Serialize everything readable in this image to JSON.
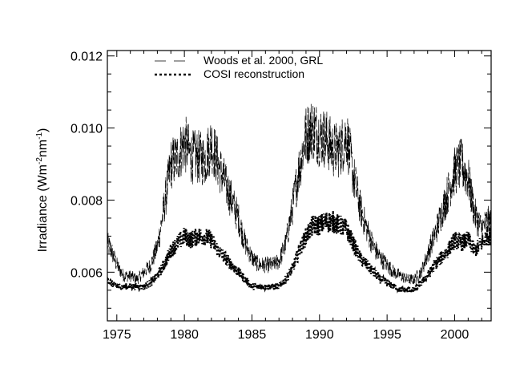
{
  "chart_data": {
    "type": "line",
    "title": "",
    "xlabel": "",
    "ylabel": "Irradiance (Wm-2nm-1)",
    "ylabel_parts": {
      "pre": "Irradiance (Wm",
      "sup1": "-2",
      "mid": "nm",
      "sup2": "-1",
      "post": ")"
    },
    "xlim": [
      1974.3,
      2002.7
    ],
    "ylim": [
      0.00465,
      0.01215
    ],
    "x_ticks": [
      1975,
      1980,
      1985,
      1990,
      1995,
      2000
    ],
    "x_tick_labels": [
      "1975",
      "1980",
      "1985",
      "1990",
      "1995",
      "2000"
    ],
    "y_ticks": [
      0.006,
      0.008,
      0.01,
      0.012
    ],
    "y_tick_labels": [
      "0.006",
      "0.008",
      "0.010",
      "0.012"
    ],
    "legend_position": "top-center",
    "series": [
      {
        "name": "Woods et al. 2000, GRL",
        "style": "thin-long-dash",
        "x": [
          1974.3,
          1974.6,
          1975.0,
          1975.5,
          1976.0,
          1976.5,
          1977.0,
          1977.5,
          1978.0,
          1978.5,
          1979.0,
          1979.5,
          1980.0,
          1980.5,
          1981.0,
          1981.5,
          1982.0,
          1982.5,
          1983.0,
          1983.5,
          1984.0,
          1984.5,
          1985.0,
          1985.5,
          1986.0,
          1986.5,
          1987.0,
          1987.5,
          1988.0,
          1988.5,
          1989.0,
          1989.5,
          1990.0,
          1990.5,
          1991.0,
          1991.5,
          1992.0,
          1992.5,
          1993.0,
          1993.5,
          1994.0,
          1994.5,
          1995.0,
          1995.5,
          1996.0,
          1996.5,
          1997.0,
          1997.5,
          1998.0,
          1998.5,
          1999.0,
          1999.5,
          2000.0,
          2000.5,
          2001.0,
          2001.5,
          2002.0,
          2002.4
        ],
        "values": [
          0.0068,
          0.0066,
          0.0062,
          0.0059,
          0.0059,
          0.0058,
          0.006,
          0.0062,
          0.0067,
          0.0078,
          0.009,
          0.0092,
          0.0096,
          0.0092,
          0.0092,
          0.0091,
          0.0096,
          0.009,
          0.0085,
          0.008,
          0.0075,
          0.0068,
          0.0064,
          0.0062,
          0.0062,
          0.0062,
          0.0063,
          0.0068,
          0.0078,
          0.0089,
          0.0098,
          0.01,
          0.0098,
          0.0097,
          0.0094,
          0.0094,
          0.0098,
          0.0087,
          0.0078,
          0.0072,
          0.0067,
          0.0064,
          0.0062,
          0.006,
          0.0059,
          0.0058,
          0.0058,
          0.006,
          0.0065,
          0.007,
          0.0076,
          0.0082,
          0.0088,
          0.009,
          0.0086,
          0.0076,
          0.0072,
          0.0074
        ]
      },
      {
        "name": "COSI reconstruction",
        "style": "thick-dotted",
        "x": [
          1974.3,
          1974.6,
          1975.0,
          1975.5,
          1976.0,
          1976.5,
          1977.0,
          1977.5,
          1978.0,
          1978.5,
          1979.0,
          1979.5,
          1980.0,
          1980.5,
          1981.0,
          1981.5,
          1982.0,
          1982.5,
          1983.0,
          1983.5,
          1984.0,
          1984.5,
          1985.0,
          1985.5,
          1986.0,
          1986.5,
          1987.0,
          1987.5,
          1988.0,
          1988.5,
          1989.0,
          1989.5,
          1990.0,
          1990.5,
          1991.0,
          1991.5,
          1992.0,
          1992.5,
          1993.0,
          1993.5,
          1994.0,
          1994.5,
          1995.0,
          1995.5,
          1996.0,
          1996.5,
          1997.0,
          1997.5,
          1998.0,
          1998.5,
          1999.0,
          1999.5,
          2000.0,
          2000.5,
          2001.0,
          2001.5,
          2002.0,
          2002.4
        ],
        "values": [
          0.0058,
          0.0057,
          0.0056,
          0.0056,
          0.0056,
          0.0056,
          0.0056,
          0.0057,
          0.0059,
          0.0062,
          0.0066,
          0.0068,
          0.007,
          0.0069,
          0.007,
          0.007,
          0.0069,
          0.0066,
          0.0064,
          0.0062,
          0.006,
          0.0058,
          0.0056,
          0.0056,
          0.0056,
          0.0056,
          0.0056,
          0.0058,
          0.0061,
          0.0066,
          0.007,
          0.0073,
          0.0073,
          0.0074,
          0.0074,
          0.0073,
          0.0072,
          0.0068,
          0.0064,
          0.0062,
          0.006,
          0.0058,
          0.0057,
          0.0056,
          0.0055,
          0.0055,
          0.0055,
          0.0057,
          0.0059,
          0.0062,
          0.0064,
          0.0066,
          0.0069,
          0.0068,
          0.0069,
          0.0066,
          0.0068,
          0.007
        ]
      }
    ]
  }
}
